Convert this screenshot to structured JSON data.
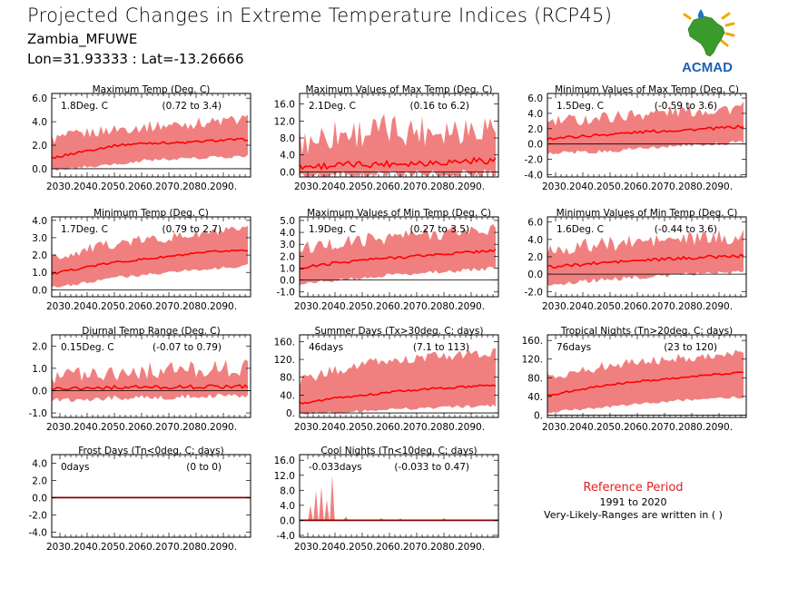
{
  "header": {
    "title": "Projected Changes in Extreme Temperature Indices (RCP45)",
    "location": "Zambia_MFUWE",
    "coordinates": "Lon=31.93333 : Lat=-13.26666"
  },
  "logo": {
    "text": "ACMAD"
  },
  "reference": {
    "title": "Reference Period",
    "years": "1991 to 2020",
    "note": "Very-Likely-Ranges are written in ( )"
  },
  "colors": {
    "band": "#f08080",
    "median": "#ff0000",
    "zero_line": "#8b0000"
  },
  "chart_data": [
    {
      "type": "area",
      "title": "Maximum Temp (Deg. C)",
      "stat": "1.8Deg. C",
      "range_text": "(0.72 to 3.4)",
      "x_ticks": [
        "2030.",
        "2040.",
        "2050.",
        "2060.",
        "2070.",
        "2080.",
        "2090."
      ],
      "xlim": [
        2027,
        2100
      ],
      "y_ticks": [
        0.0,
        2.0,
        4.0,
        6.0
      ],
      "ylim": [
        -0.7,
        6.4
      ],
      "median": [
        0.9,
        1.5,
        2.0,
        2.2,
        2.2,
        2.4,
        2.5
      ],
      "lower": [
        0.0,
        0.3,
        0.6,
        0.9,
        1.0,
        1.1,
        1.2
      ],
      "upper": [
        2.5,
        3.0,
        3.4,
        3.6,
        3.8,
        4.0,
        4.2
      ],
      "noise": 0.5
    },
    {
      "type": "area",
      "title": "Maximum Values of Max Temp (Deg. C)",
      "stat": "2.1Deg. C",
      "range_text": "(0.16 to 6.2)",
      "x_ticks": [
        "2030.",
        "2040.",
        "2050.",
        "2060.",
        "2070.",
        "2080.",
        "2090."
      ],
      "xlim": [
        2027,
        2100
      ],
      "y_ticks": [
        0.0,
        4.0,
        8.0,
        12.0,
        16.0
      ],
      "ylim": [
        -1.2,
        18.5
      ],
      "median": [
        1.2,
        1.5,
        1.8,
        2.0,
        2.2,
        2.5,
        2.8
      ],
      "lower": [
        0.1,
        0.2,
        0.3,
        0.4,
        0.5,
        0.6,
        0.8
      ],
      "upper": [
        7.0,
        9.0,
        9.5,
        10.0,
        10.0,
        10.5,
        11.0
      ],
      "noise": 4.0
    },
    {
      "type": "area",
      "title": "Minimum Values of Max Temp (Deg. C)",
      "stat": "1.5Deg. C",
      "range_text": "(-0.59 to 3.6)",
      "x_ticks": [
        "2030.",
        "2040.",
        "2050.",
        "2060.",
        "2070.",
        "2080.",
        "2090."
      ],
      "xlim": [
        2027,
        2100
      ],
      "y_ticks": [
        -4.0,
        -2.0,
        0.0,
        2.0,
        4.0,
        6.0
      ],
      "ylim": [
        -4.3,
        6.6
      ],
      "median": [
        0.7,
        1.0,
        1.3,
        1.6,
        1.8,
        2.0,
        2.3
      ],
      "lower": [
        -1.0,
        -0.8,
        -0.6,
        -0.3,
        0.0,
        0.3,
        0.5
      ],
      "upper": [
        2.8,
        3.2,
        3.6,
        4.0,
        4.3,
        4.5,
        4.8
      ],
      "noise": 0.9
    },
    {
      "type": "area",
      "title": "Minimum Temp (Deg. C)",
      "stat": "1.7Deg. C",
      "range_text": "(0.79 to 2.7)",
      "x_ticks": [
        "2030.",
        "2040.",
        "2050.",
        "2060.",
        "2070.",
        "2080.",
        "2090."
      ],
      "xlim": [
        2027,
        2100
      ],
      "y_ticks": [
        0.0,
        1.0,
        2.0,
        3.0,
        4.0
      ],
      "ylim": [
        -0.4,
        4.2
      ],
      "median": [
        0.9,
        1.3,
        1.6,
        1.8,
        2.0,
        2.2,
        2.3
      ],
      "lower": [
        0.2,
        0.5,
        0.8,
        1.0,
        1.2,
        1.3,
        1.5
      ],
      "upper": [
        1.8,
        2.3,
        2.7,
        2.9,
        3.1,
        3.3,
        3.4
      ],
      "noise": 0.3
    },
    {
      "type": "area",
      "title": "Maximum Values of Min Temp (Deg. C)",
      "stat": "1.9Deg. C",
      "range_text": "(0.27 to 3.5)",
      "x_ticks": [
        "2030.",
        "2040.",
        "2050.",
        "2060.",
        "2070.",
        "2080.",
        "2090."
      ],
      "xlim": [
        2027,
        2100
      ],
      "y_ticks": [
        -1.0,
        0.0,
        1.0,
        2.0,
        3.0,
        4.0,
        5.0
      ],
      "ylim": [
        -1.4,
        5.3
      ],
      "median": [
        1.0,
        1.4,
        1.7,
        1.9,
        2.1,
        2.3,
        2.5
      ],
      "lower": [
        -0.2,
        0.1,
        0.4,
        0.6,
        0.8,
        1.0,
        1.2
      ],
      "upper": [
        2.6,
        3.0,
        3.4,
        3.7,
        3.9,
        4.1,
        4.3
      ],
      "noise": 0.6
    },
    {
      "type": "area",
      "title": "Minimum Values of Min Temp (Deg. C)",
      "stat": "1.6Deg. C",
      "range_text": "(-0.44 to 3.6)",
      "x_ticks": [
        "2030.",
        "2040.",
        "2050.",
        "2060.",
        "2070.",
        "2080.",
        "2090."
      ],
      "xlim": [
        2027,
        2100
      ],
      "y_ticks": [
        -2.0,
        0.0,
        2.0,
        4.0,
        6.0
      ],
      "ylim": [
        -2.6,
        6.6
      ],
      "median": [
        0.8,
        1.1,
        1.4,
        1.6,
        1.8,
        2.0,
        2.1
      ],
      "lower": [
        -0.9,
        -0.6,
        -0.3,
        0.0,
        0.2,
        0.4,
        0.5
      ],
      "upper": [
        2.8,
        3.2,
        3.5,
        3.8,
        4.0,
        4.2,
        4.3
      ],
      "noise": 0.9
    },
    {
      "type": "area",
      "title": "Diurnal Temp Range (Deg. C)",
      "stat": "0.15Deg. C",
      "range_text": "(-0.07 to 0.79)",
      "x_ticks": [
        "2030.",
        "2040.",
        "2050.",
        "2060.",
        "2070.",
        "2080.",
        "2090."
      ],
      "xlim": [
        2027,
        2100
      ],
      "y_ticks": [
        -1.0,
        0.0,
        1.0,
        2.0
      ],
      "ylim": [
        -1.2,
        2.5
      ],
      "median": [
        0.1,
        0.12,
        0.15,
        0.15,
        0.16,
        0.18,
        0.2
      ],
      "lower": [
        -0.3,
        -0.25,
        -0.2,
        -0.2,
        -0.15,
        -0.1,
        -0.1
      ],
      "upper": [
        0.7,
        0.8,
        0.85,
        0.9,
        0.95,
        1.0,
        1.0
      ],
      "noise": 0.4
    },
    {
      "type": "area",
      "title": "Summer Days (Tx>30deg. C; days)",
      "stat": "46days",
      "range_text": "(7.1 to 113)",
      "x_ticks": [
        "2030.",
        "2040.",
        "2050.",
        "2060.",
        "2070.",
        "2080.",
        "2090."
      ],
      "xlim": [
        2027,
        2100
      ],
      "y_ticks": [
        0,
        40,
        80,
        120,
        160
      ],
      "ylim": [
        -10,
        175
      ],
      "y_tick_labels": [
        "0.",
        "40.",
        "80.",
        "120.",
        "160."
      ],
      "median": [
        22,
        32,
        40,
        48,
        54,
        58,
        62
      ],
      "lower": [
        2,
        5,
        8,
        12,
        15,
        18,
        20
      ],
      "upper": [
        70,
        95,
        110,
        118,
        125,
        130,
        135
      ],
      "noise": 12
    },
    {
      "type": "area",
      "title": "Tropical Nights (Tn>20deg. C; days)",
      "stat": "76days",
      "range_text": "(23 to 120)",
      "x_ticks": [
        "2030.",
        "2040.",
        "2050.",
        "2060.",
        "2070.",
        "2080.",
        "2090."
      ],
      "xlim": [
        2027,
        2100
      ],
      "y_ticks": [
        0,
        40,
        80,
        120,
        160
      ],
      "ylim": [
        -5,
        172
      ],
      "y_tick_labels": [
        "0.",
        "40.",
        "80.",
        "120.",
        "160."
      ],
      "median": [
        42,
        55,
        66,
        74,
        80,
        86,
        92
      ],
      "lower": [
        8,
        15,
        22,
        28,
        34,
        38,
        42
      ],
      "upper": [
        80,
        95,
        108,
        115,
        122,
        128,
        132
      ],
      "noise": 10
    },
    {
      "type": "area",
      "title": "Frost Days (Tn<0deg. C; days)",
      "stat": "0days",
      "range_text": "(0 to 0)",
      "x_ticks": [
        "2030.",
        "2040.",
        "2050.",
        "2060.",
        "2070.",
        "2080.",
        "2090."
      ],
      "xlim": [
        2027,
        2100
      ],
      "y_ticks": [
        -4.0,
        -2.0,
        0.0,
        2.0,
        4.0
      ],
      "ylim": [
        -4.6,
        5.0
      ],
      "median": [
        0,
        0,
        0,
        0,
        0,
        0,
        0
      ],
      "lower": [
        0,
        0,
        0,
        0,
        0,
        0,
        0
      ],
      "upper": [
        0,
        0,
        0,
        0,
        0,
        0,
        0
      ],
      "noise": 0
    },
    {
      "type": "area",
      "title": "Cool Nights (Tn<10deg. C; days)",
      "stat": "-0.033days",
      "range_text": "(-0.033 to 0.47)",
      "x_ticks": [
        "2030.",
        "2040.",
        "2050.",
        "2060.",
        "2070.",
        "2080.",
        "2090."
      ],
      "xlim": [
        2027,
        2100
      ],
      "y_ticks": [
        -4.0,
        0.0,
        4.0,
        8.0,
        12.0,
        16.0
      ],
      "ylim": [
        -4.5,
        17.5
      ],
      "median": [
        0,
        0,
        0,
        0,
        0,
        0,
        0
      ],
      "lower": [
        0,
        0,
        0,
        0,
        0,
        0,
        0
      ],
      "upper": [
        0,
        0,
        0,
        0,
        0,
        0,
        0
      ],
      "noise": 0,
      "spikes": [
        [
          2031,
          4
        ],
        [
          2033,
          8
        ],
        [
          2035,
          9
        ],
        [
          2037,
          5.5
        ],
        [
          2039,
          12
        ],
        [
          2044,
          1
        ],
        [
          2057,
          0.6
        ],
        [
          2064,
          0.5
        ],
        [
          2080,
          0.6
        ]
      ]
    }
  ]
}
